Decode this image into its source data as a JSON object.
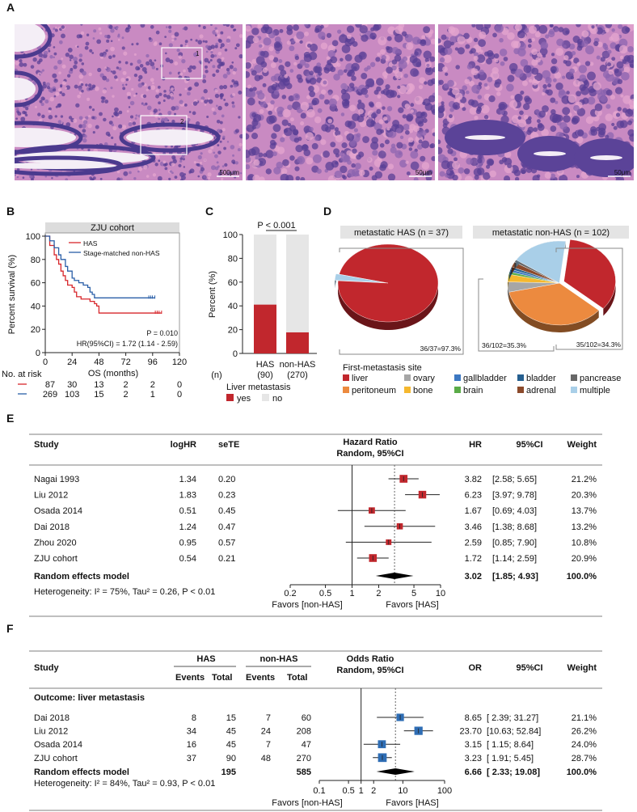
{
  "panels": {
    "A": "A",
    "B": "B",
    "C": "C",
    "D": "D",
    "E": "E",
    "F": "F"
  },
  "panel_a": {
    "scale_bars": [
      "500μm",
      "50μm",
      "50μm"
    ],
    "roi_labels": [
      "1",
      "2"
    ],
    "colors": {
      "stain_pink": "#d98cb8",
      "stain_purple": "#6a4fa3"
    }
  },
  "chart_data": [
    {
      "id": "B",
      "type": "line",
      "title": "ZJU cohort",
      "xlabel": "OS (months)",
      "ylabel": "Percent survival (%)",
      "xlim": [
        0,
        120
      ],
      "ylim": [
        0,
        100
      ],
      "xticks": [
        "0",
        "24",
        "48",
        "72",
        "96",
        "120"
      ],
      "yticks": [
        "0",
        "20",
        "40",
        "60",
        "80",
        "100"
      ],
      "series": [
        {
          "name": "HAS",
          "color": "#d7262b",
          "x": [
            0,
            4,
            8,
            10,
            12,
            14,
            16,
            18,
            20,
            24,
            26,
            28,
            32,
            36,
            40,
            44,
            46,
            48,
            104
          ],
          "y": [
            100,
            92,
            84,
            80,
            76,
            70,
            66,
            62,
            58,
            56,
            52,
            48,
            46,
            46,
            44,
            42,
            40,
            34,
            34
          ]
        },
        {
          "name": "Stage-matched non-HAS",
          "color": "#2a5fa8",
          "x": [
            0,
            4,
            8,
            12,
            14,
            18,
            20,
            24,
            26,
            30,
            34,
            38,
            40,
            42,
            44,
            98
          ],
          "y": [
            100,
            96,
            90,
            84,
            80,
            74,
            70,
            64,
            62,
            60,
            58,
            56,
            52,
            50,
            47,
            47
          ]
        }
      ],
      "annotation_p": "P = 0.010",
      "annotation_hr": "HR(95%CI) = 1.72 (1.14 - 2.59)",
      "risk_table": {
        "label": "No. at risk",
        "rows": [
          [
            "87",
            "30",
            "13",
            "2",
            "2",
            "0"
          ],
          [
            "269",
            "103",
            "15",
            "2",
            "1",
            "0"
          ]
        ]
      }
    },
    {
      "id": "C",
      "type": "bar",
      "stacked": true,
      "ylabel": "Percent (%)",
      "ylim": [
        0,
        100
      ],
      "yticks": [
        "0",
        "20",
        "40",
        "60",
        "80",
        "100"
      ],
      "categories": [
        "HAS",
        "non-HAS"
      ],
      "n_label": "(n)",
      "n_values": [
        "(90)",
        "(270)"
      ],
      "series": [
        {
          "name": "yes",
          "color": "#c1272d",
          "values": [
            41.1,
            17.8
          ]
        },
        {
          "name": "no",
          "color": "#e6e6e6",
          "values": [
            58.9,
            82.2
          ]
        }
      ],
      "annotation": "P < 0.001",
      "legend_title": "Liver metastasis"
    },
    {
      "id": "D",
      "type": "pie",
      "legend_title": "First-metastasis site",
      "categories": [
        "liver",
        "ovary",
        "gallbladder",
        "bladder",
        "pancrease",
        "peritoneum",
        "bone",
        "brain",
        "adrenal",
        "multiple"
      ],
      "colors": {
        "liver": "#c1272d",
        "ovary": "#a6a6a6",
        "gallbladder": "#3d78c2",
        "bladder": "#255f8f",
        "pancrease": "#676767",
        "peritoneum": "#ec8a3f",
        "bone": "#f5b82e",
        "brain": "#5aab47",
        "adrenal": "#8b4a2b",
        "multiple": "#a9cfe8"
      },
      "pies": [
        {
          "title": "metastatic HAS (n = 37)",
          "slices": [
            {
              "name": "liver",
              "value": 36
            },
            {
              "name": "multiple",
              "value": 1
            }
          ],
          "labels": [
            "36/37=97.3%"
          ]
        },
        {
          "title": "metastatic non-HAS (n = 102)",
          "slices": [
            {
              "name": "liver",
              "value": 35
            },
            {
              "name": "peritoneum",
              "value": 36
            },
            {
              "name": "ovary",
              "value": 4
            },
            {
              "name": "bone",
              "value": 3
            },
            {
              "name": "brain",
              "value": 1
            },
            {
              "name": "gallbladder",
              "value": 1
            },
            {
              "name": "bladder",
              "value": 1
            },
            {
              "name": "adrenal",
              "value": 2
            },
            {
              "name": "pancrease",
              "value": 1
            },
            {
              "name": "multiple",
              "value": 18
            }
          ],
          "labels": [
            "36/102=35.3%",
            "35/102=34.3%"
          ]
        }
      ]
    },
    {
      "id": "E",
      "type": "forest",
      "headers": {
        "study": "Study",
        "c1": "logHR",
        "c2": "seTE",
        "plot1": "Hazard Ratio",
        "plot2": "Random, 95%CI",
        "est": "HR",
        "ci": "95%CI",
        "weight": "Weight"
      },
      "color": "#c1272d",
      "scale": "log",
      "xlim": [
        0.2,
        10
      ],
      "xticks": [
        "0.2",
        "0.5",
        "1",
        "2",
        "5",
        "10"
      ],
      "rows": [
        {
          "study": "Nagai 1993",
          "c1": "1.34",
          "c2": "0.20",
          "est": 3.82,
          "lo": 2.58,
          "hi": 5.65,
          "est_t": "3.82",
          "ci": "[2.58; 5.65]",
          "weight": "21.2%"
        },
        {
          "study": "Liu 2012",
          "c1": "1.83",
          "c2": "0.23",
          "est": 6.23,
          "lo": 3.97,
          "hi": 9.78,
          "est_t": "6.23",
          "ci": "[3.97; 9.78]",
          "weight": "20.3%"
        },
        {
          "study": "Osada 2014",
          "c1": "0.51",
          "c2": "0.45",
          "est": 1.67,
          "lo": 0.69,
          "hi": 4.03,
          "est_t": "1.67",
          "ci": "[0.69; 4.03]",
          "weight": "13.7%"
        },
        {
          "study": "Dai 2018",
          "c1": "1.24",
          "c2": "0.47",
          "est": 3.46,
          "lo": 1.38,
          "hi": 8.68,
          "est_t": "3.46",
          "ci": "[1.38; 8.68]",
          "weight": "13.2%"
        },
        {
          "study": "Zhou 2020",
          "c1": "0.95",
          "c2": "0.57",
          "est": 2.59,
          "lo": 0.85,
          "hi": 7.9,
          "est_t": "2.59",
          "ci": "[0.85; 7.90]",
          "weight": "10.8%"
        },
        {
          "study": "ZJU cohort",
          "c1": "0.54",
          "c2": "0.21",
          "est": 1.72,
          "lo": 1.14,
          "hi": 2.59,
          "est_t": "1.72",
          "ci": "[1.14; 2.59]",
          "weight": "20.9%"
        }
      ],
      "pooled": {
        "label": "Random effects model",
        "est": 3.02,
        "lo": 1.85,
        "hi": 4.93,
        "est_t": "3.02",
        "ci": "[1.85; 4.93]",
        "weight": "100.0%"
      },
      "heterogeneity": "Heterogeneity:  I² = 75%, Tau² = 0.26, P < 0.01",
      "favors_left": "Favors [non-HAS]",
      "favors_right": "Favors [HAS]"
    },
    {
      "id": "F",
      "type": "forest",
      "headers": {
        "study": "Study",
        "g1": "HAS",
        "g2": "non-HAS",
        "ev": "Events",
        "tot": "Total",
        "plot1": "Odds Ratio",
        "plot2": "Random, 95%CI",
        "est": "OR",
        "ci": "95%CI",
        "weight": "Weight"
      },
      "subgroup": "Outcome: liver metastasis",
      "color": "#2e6db4",
      "scale": "log",
      "xlim": [
        0.1,
        100
      ],
      "xticks": [
        "0.1",
        "0.5",
        "1",
        "2",
        "10",
        "100"
      ],
      "rows": [
        {
          "study": "Dai 2018",
          "e1": "8",
          "t1": "15",
          "e2": "7",
          "t2": "60",
          "est": 8.65,
          "lo": 2.39,
          "hi": 31.27,
          "est_t": "8.65",
          "ci": "[ 2.39; 31.27]",
          "weight": "21.1%"
        },
        {
          "study": "Liu 2012",
          "e1": "34",
          "t1": "45",
          "e2": "24",
          "t2": "208",
          "est": 23.7,
          "lo": 10.63,
          "hi": 52.84,
          "est_t": "23.70",
          "ci": "[10.63; 52.84]",
          "weight": "26.2%"
        },
        {
          "study": "Osada 2014",
          "e1": "16",
          "t1": "45",
          "e2": "7",
          "t2": "47",
          "est": 3.15,
          "lo": 1.15,
          "hi": 8.64,
          "est_t": "3.15",
          "ci": "[ 1.15;  8.64]",
          "weight": "24.0%"
        },
        {
          "study": "ZJU cohort",
          "e1": "37",
          "t1": "90",
          "e2": "48",
          "t2": "270",
          "est": 3.23,
          "lo": 1.91,
          "hi": 5.45,
          "est_t": "3.23",
          "ci": "[ 1.91;  5.45]",
          "weight": "28.7%"
        }
      ],
      "pooled": {
        "label": "Random effects model",
        "t1": "195",
        "t2": "585",
        "est": 6.66,
        "lo": 2.33,
        "hi": 19.08,
        "est_t": "6.66",
        "ci": "[ 2.33; 19.08]",
        "weight": "100.0%"
      },
      "heterogeneity": "Heterogeneity:  I² = 84%, Tau² = 0.93, P < 0.01",
      "favors_left": "Favors [non-HAS]",
      "favors_right": "Favors [HAS]"
    }
  ]
}
